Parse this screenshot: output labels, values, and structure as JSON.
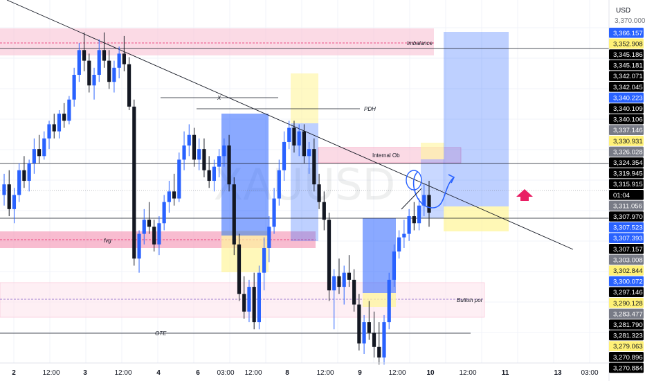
{
  "symbol_watermark": "XAUUSD",
  "currency": "USD",
  "countdown": "01:04",
  "colors": {
    "bull": "#2962ff",
    "bear": "#131722",
    "pink_zone": "#f7c4d6",
    "pink_strong": "#f48fb1",
    "blue_zone": "#2962ff",
    "yellow_zone": "#fff59d",
    "arrow": "#e91e63"
  },
  "price_labels": [
    {
      "text": "3,366.157",
      "bg": "#2962ff",
      "fg": "#ffffff"
    },
    {
      "text": "3,352.908",
      "bg": "#fff176",
      "fg": "#131722"
    },
    {
      "text": "3,345.186",
      "bg": "#000000",
      "fg": "#ffffff"
    },
    {
      "text": "3,345.181",
      "bg": "#000000",
      "fg": "#ffffff"
    },
    {
      "text": "3,342.071",
      "bg": "#000000",
      "fg": "#ffffff"
    },
    {
      "text": "3,342.045",
      "bg": "#000000",
      "fg": "#ffffff"
    },
    {
      "text": "3,340.223",
      "bg": "#2962ff",
      "fg": "#ffffff"
    },
    {
      "text": "3,340.109",
      "bg": "#000000",
      "fg": "#ffffff"
    },
    {
      "text": "3,340.106",
      "bg": "#000000",
      "fg": "#ffffff"
    },
    {
      "text": "3,337.146",
      "bg": "#787b86",
      "fg": "#ffffff"
    },
    {
      "text": "3,330.931",
      "bg": "#fff176",
      "fg": "#131722"
    },
    {
      "text": "3,326.028",
      "bg": "#787b86",
      "fg": "#ffffff"
    },
    {
      "text": "3,324.354",
      "bg": "#000000",
      "fg": "#ffffff"
    },
    {
      "text": "3,319.945",
      "bg": "#000000",
      "fg": "#ffffff"
    },
    {
      "text": "3,315.915",
      "bg": "#000000",
      "fg": "#ffffff"
    },
    {
      "text": "01:04",
      "bg": "#000000",
      "fg": "#ffffff"
    },
    {
      "text": "3,311.056",
      "bg": "#787b86",
      "fg": "#ffffff"
    },
    {
      "text": "3,307.970",
      "bg": "#000000",
      "fg": "#ffffff"
    },
    {
      "text": "3,307.523",
      "bg": "#2962ff",
      "fg": "#ffffff"
    },
    {
      "text": "3,307.393",
      "bg": "#2962ff",
      "fg": "#ffffff"
    },
    {
      "text": "3,307.157",
      "bg": "#000000",
      "fg": "#ffffff"
    },
    {
      "text": "3,303.008",
      "bg": "#787b86",
      "fg": "#ffffff"
    },
    {
      "text": "3,302.844",
      "bg": "#fff176",
      "fg": "#131722"
    },
    {
      "text": "3,300.072",
      "bg": "#2962ff",
      "fg": "#ffffff"
    },
    {
      "text": "3,297.146",
      "bg": "#000000",
      "fg": "#ffffff"
    },
    {
      "text": "3,290.128",
      "bg": "#fff176",
      "fg": "#131722"
    },
    {
      "text": "3,283.477",
      "bg": "#787b86",
      "fg": "#ffffff"
    },
    {
      "text": "3,281.790",
      "bg": "#000000",
      "fg": "#ffffff"
    },
    {
      "text": "3,281.323",
      "bg": "#000000",
      "fg": "#ffffff"
    },
    {
      "text": "3,279.063",
      "bg": "#fff176",
      "fg": "#131722"
    },
    {
      "text": "3,270.896",
      "bg": "#000000",
      "fg": "#ffffff"
    },
    {
      "text": "3,270.884",
      "bg": "#000000",
      "fg": "#ffffff"
    }
  ],
  "top_partial_tick": "3,370.000",
  "x_ticks": [
    {
      "label": "2",
      "bold": true
    },
    {
      "label": "12:00",
      "bold": false
    },
    {
      "label": "3",
      "bold": true
    },
    {
      "label": "12:00",
      "bold": false
    },
    {
      "label": "4",
      "bold": true
    },
    {
      "label": "6",
      "bold": true
    },
    {
      "label": "03:00",
      "bold": false
    },
    {
      "label": "12:00",
      "bold": false
    },
    {
      "label": "8",
      "bold": true
    },
    {
      "label": "12:00",
      "bold": false
    },
    {
      "label": "9",
      "bold": true
    },
    {
      "label": "12:00",
      "bold": false
    },
    {
      "label": "10",
      "bold": true
    },
    {
      "label": "12:00",
      "bold": false
    },
    {
      "label": "11",
      "bold": true
    },
    {
      "label": "13",
      "bold": true
    },
    {
      "label": "03:00",
      "bold": false
    }
  ],
  "annotations": {
    "imbalance": "Imbalance",
    "x_level": "X",
    "pdh": "PDH",
    "internal_ob": "Internal Ob",
    "fvg": "fvg",
    "bullish_poi": "Bullish poi",
    "ote": "OTE"
  },
  "chart_data": {
    "type": "candlestick",
    "symbol": "XAUUSD",
    "currency": "USD",
    "current_price": 3315.915,
    "ylim": [
      3268,
      3372
    ],
    "grid": true,
    "legend": "none",
    "candles": [
      [
        3320,
        3326,
        3317,
        3323
      ],
      [
        3323,
        3327,
        3314,
        3316
      ],
      [
        3316,
        3322,
        3312,
        3320
      ],
      [
        3320,
        3329,
        3318,
        3327
      ],
      [
        3327,
        3331,
        3322,
        3324
      ],
      [
        3324,
        3330,
        3321,
        3329
      ],
      [
        3329,
        3336,
        3326,
        3333
      ],
      [
        3333,
        3337,
        3329,
        3331
      ],
      [
        3331,
        3338,
        3330,
        3336
      ],
      [
        3336,
        3341,
        3333,
        3340
      ],
      [
        3340,
        3343,
        3336,
        3338
      ],
      [
        3338,
        3344,
        3336,
        3343
      ],
      [
        3343,
        3346,
        3339,
        3341
      ],
      [
        3341,
        3348,
        3340,
        3347
      ],
      [
        3347,
        3356,
        3345,
        3354
      ],
      [
        3354,
        3363,
        3352,
        3361
      ],
      [
        3361,
        3366,
        3355,
        3358
      ],
      [
        3358,
        3360,
        3349,
        3351
      ],
      [
        3351,
        3356,
        3347,
        3354
      ],
      [
        3354,
        3364,
        3352,
        3361
      ],
      [
        3361,
        3366,
        3356,
        3358
      ],
      [
        3358,
        3361,
        3350,
        3352
      ],
      [
        3352,
        3358,
        3349,
        3356
      ],
      [
        3356,
        3362,
        3353,
        3360
      ],
      [
        3360,
        3365,
        3355,
        3357
      ],
      [
        3357,
        3359,
        3344,
        3345
      ],
      [
        3345,
        3347,
        3300,
        3302
      ],
      [
        3302,
        3310,
        3298,
        3309
      ],
      [
        3309,
        3316,
        3306,
        3313
      ],
      [
        3313,
        3318,
        3309,
        3311
      ],
      [
        3311,
        3313,
        3304,
        3306
      ],
      [
        3306,
        3314,
        3303,
        3312
      ],
      [
        3312,
        3320,
        3310,
        3318
      ],
      [
        3318,
        3324,
        3315,
        3321
      ],
      [
        3321,
        3326,
        3317,
        3319
      ],
      [
        3319,
        3332,
        3318,
        3330
      ],
      [
        3330,
        3338,
        3327,
        3334
      ],
      [
        3334,
        3340,
        3331,
        3337
      ],
      [
        3337,
        3339,
        3328,
        3330
      ],
      [
        3330,
        3336,
        3327,
        3333
      ],
      [
        3333,
        3336,
        3325,
        3327
      ],
      [
        3327,
        3331,
        3322,
        3324
      ],
      [
        3324,
        3330,
        3321,
        3328
      ],
      [
        3328,
        3333,
        3325,
        3331
      ],
      [
        3331,
        3336,
        3328,
        3334
      ],
      [
        3334,
        3337,
        3321,
        3323
      ],
      [
        3323,
        3325,
        3303,
        3306
      ],
      [
        3306,
        3309,
        3290,
        3292
      ],
      [
        3292,
        3297,
        3285,
        3287
      ],
      [
        3287,
        3296,
        3284,
        3294
      ],
      [
        3294,
        3298,
        3282,
        3284
      ],
      [
        3284,
        3300,
        3282,
        3298
      ],
      [
        3298,
        3308,
        3293,
        3305
      ],
      [
        3305,
        3314,
        3301,
        3311
      ],
      [
        3311,
        3322,
        3309,
        3319
      ],
      [
        3319,
        3330,
        3317,
        3327
      ],
      [
        3327,
        3338,
        3324,
        3335
      ],
      [
        3335,
        3341,
        3333,
        3339
      ],
      [
        3339,
        3341,
        3332,
        3334
      ],
      [
        3334,
        3340,
        3331,
        3338
      ],
      [
        3338,
        3340,
        3329,
        3331
      ],
      [
        3331,
        3335,
        3326,
        3333
      ],
      [
        3333,
        3336,
        3321,
        3323
      ],
      [
        3323,
        3326,
        3316,
        3318
      ],
      [
        3318,
        3321,
        3310,
        3313
      ],
      [
        3313,
        3315,
        3290,
        3293
      ],
      [
        3293,
        3299,
        3282,
        3297
      ],
      [
        3297,
        3302,
        3292,
        3294
      ],
      [
        3294,
        3300,
        3289,
        3298
      ],
      [
        3298,
        3303,
        3294,
        3296
      ],
      [
        3296,
        3299,
        3287,
        3289
      ],
      [
        3289,
        3292,
        3276,
        3278
      ],
      [
        3278,
        3286,
        3275,
        3284
      ],
      [
        3284,
        3290,
        3279,
        3281
      ],
      [
        3281,
        3287,
        3274,
        3277
      ],
      [
        3277,
        3284,
        3272,
        3274
      ],
      [
        3274,
        3286,
        3272,
        3284
      ],
      [
        3284,
        3298,
        3282,
        3296
      ],
      [
        3296,
        3306,
        3294,
        3304
      ],
      [
        3304,
        3310,
        3302,
        3308
      ],
      [
        3308,
        3313,
        3305,
        3309
      ],
      [
        3309,
        3316,
        3307,
        3314
      ],
      [
        3314,
        3318,
        3310,
        3312
      ],
      [
        3312,
        3319,
        3310,
        3317
      ],
      [
        3317,
        3323,
        3314,
        3320
      ],
      [
        3320,
        3324,
        3311,
        3315
      ]
    ]
  }
}
